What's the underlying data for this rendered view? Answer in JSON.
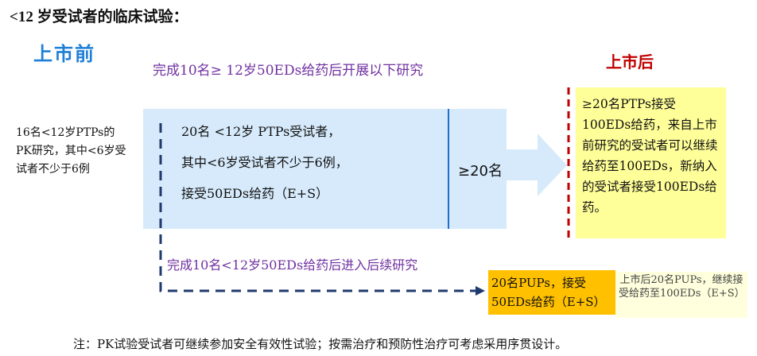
{
  "title": "<12 岁受试者的临床试验：",
  "pre_market_label": "上市前",
  "post_market_label": "上市后",
  "condition_top": "完成10名≥ 12岁50EDs给药后开展以下研究",
  "condition_bottom": "完成10名<12岁50EDs给药后进入后续研究",
  "pk_study": "16名<12岁PTPs的PK研究，其中<6岁受试者不少于6例",
  "main_box": {
    "lines": [
      "20名 <12岁 PTPs受试者，",
      "其中<6岁受试者不少于6例，",
      "接受50EDs给药（E+S）"
    ],
    "total": "≥20名"
  },
  "post_market_box": "≥20名PTPs接受100EDs给药，来自上市前研究的受试者可以继续给药至100EDs，新纳入的受试者接受100EDs给药。",
  "pups_box": "20名PUPs，接受50EDs给药（E+S）",
  "pups_post_box": "上市后20名PUPs，继续接受给药至100EDs（E+S）",
  "note": "注：PK试验受试者可继续参加安全有效性试验；按需治疗和预防性治疗可考虑采用序贯设计。",
  "colors": {
    "arrow_fill": "#d6eafb",
    "divider": "#1f6fd0",
    "red_dashed": "#c00000",
    "navy_dashed": "#1f3a6e",
    "yellow": "#ffff99",
    "orange": "#ffc000",
    "purple": "#7030a0",
    "blue_title": "#1f7fd6"
  }
}
